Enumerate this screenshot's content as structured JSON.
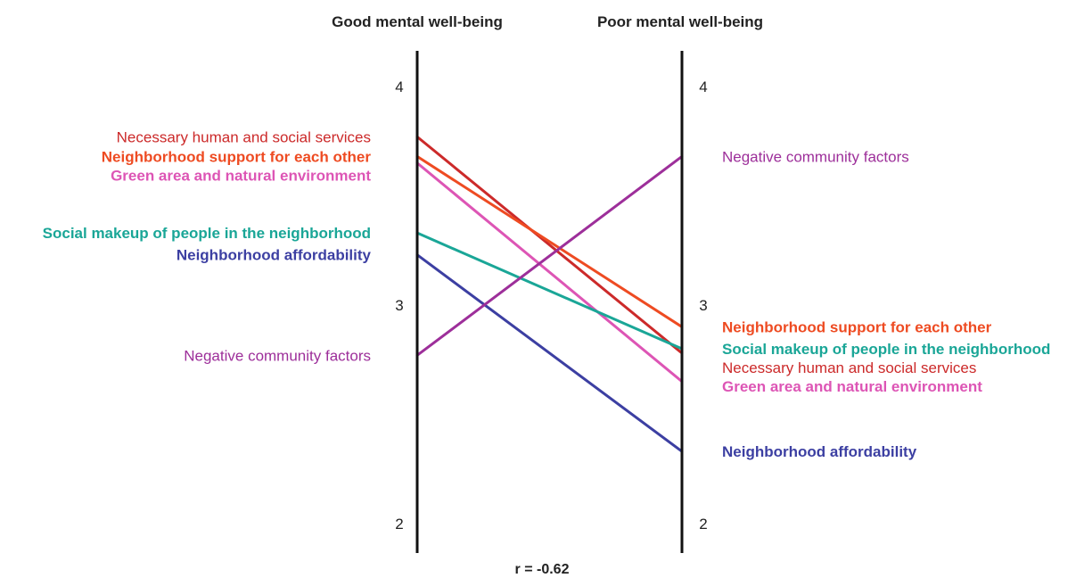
{
  "chart_data": {
    "type": "line",
    "subtype": "slope",
    "axes": [
      {
        "title": "Good mental well-being",
        "ticks": [
          "4",
          "3",
          "2"
        ]
      },
      {
        "title": "Poor mental well-being",
        "ticks": [
          "4",
          "3",
          "2"
        ]
      }
    ],
    "ylim": [
      2,
      4
    ],
    "tick_values": [
      4,
      3,
      2
    ],
    "series": [
      {
        "name": "Necessary human and social services",
        "color": "#cc2a2a",
        "values": [
          3.77,
          2.78
        ],
        "bold": false
      },
      {
        "name": "Neighborhood support for each other",
        "color": "#ee4b22",
        "values": [
          3.68,
          2.9
        ],
        "bold": true
      },
      {
        "name": "Green area and natural environment",
        "color": "#dd55b5",
        "values": [
          3.65,
          2.65
        ],
        "bold": true
      },
      {
        "name": "Social makeup of people in the neighborhood",
        "color": "#1aa697",
        "values": [
          3.33,
          2.8
        ],
        "bold": true
      },
      {
        "name": "Neighborhood affordability",
        "color": "#3c3fa2",
        "values": [
          3.23,
          2.33
        ],
        "bold": true
      },
      {
        "name": "Negative community factors",
        "color": "#9d2f9a",
        "values": [
          2.77,
          3.68
        ],
        "bold": false
      }
    ],
    "annotation": "r = -0.62"
  }
}
